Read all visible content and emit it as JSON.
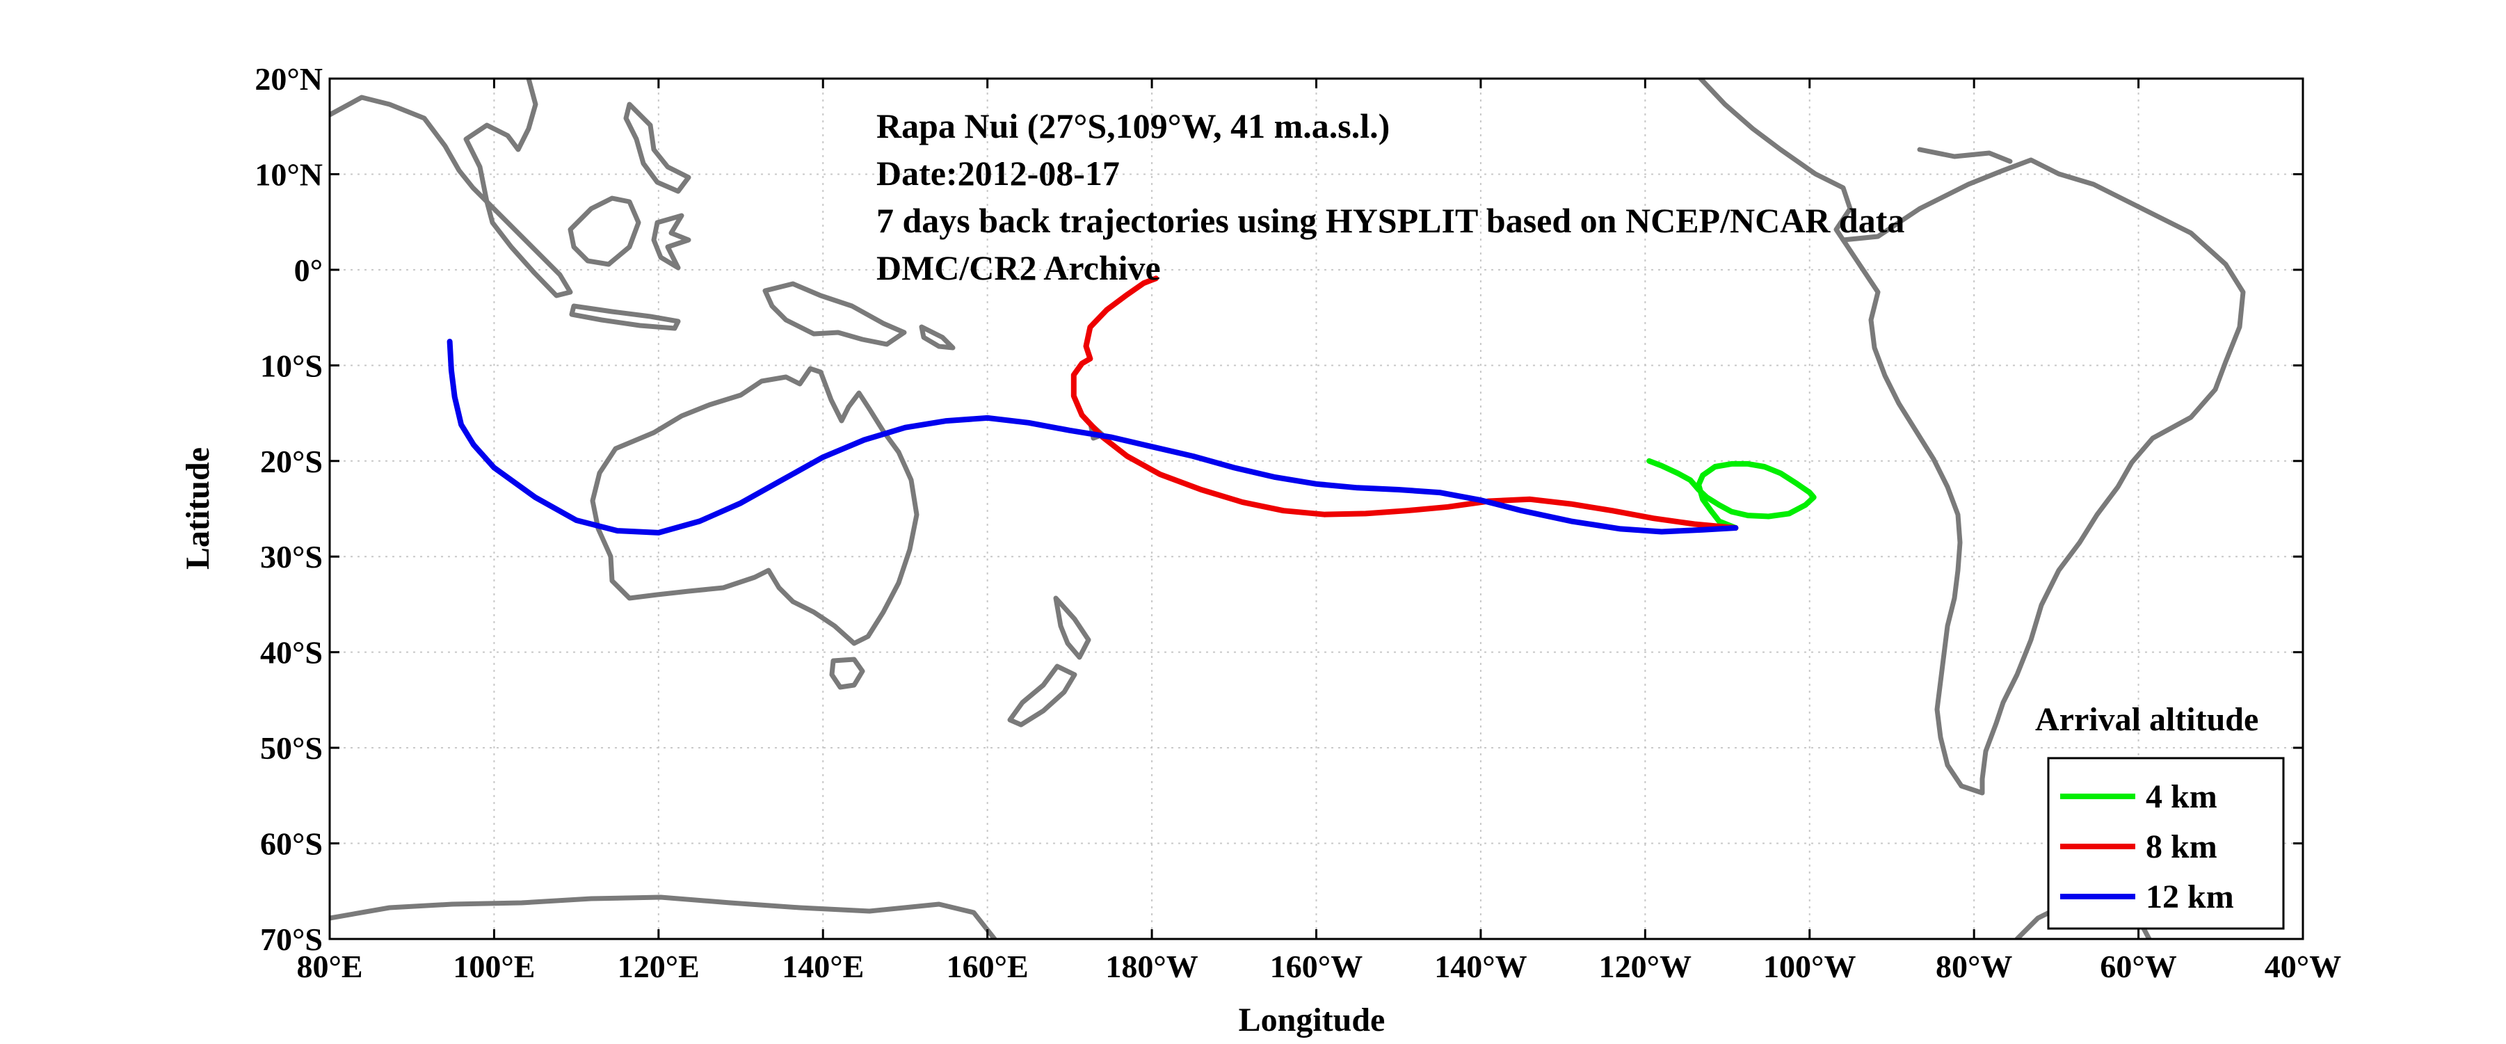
{
  "chart_data": {
    "type": "map",
    "xlabel": "Longitude",
    "ylabel": "Latitude",
    "xlim": [
      80,
      320
    ],
    "ylim": [
      -70,
      20
    ],
    "x_ticks": [
      {
        "value": 80,
        "label": "80°E"
      },
      {
        "value": 100,
        "label": "100°E"
      },
      {
        "value": 120,
        "label": "120°E"
      },
      {
        "value": 140,
        "label": "140°E"
      },
      {
        "value": 160,
        "label": "160°E"
      },
      {
        "value": 180,
        "label": "180°W"
      },
      {
        "value": 200,
        "label": "160°W"
      },
      {
        "value": 220,
        "label": "140°W"
      },
      {
        "value": 240,
        "label": "120°W"
      },
      {
        "value": 260,
        "label": "100°W"
      },
      {
        "value": 280,
        "label": "80°W"
      },
      {
        "value": 300,
        "label": "60°W"
      },
      {
        "value": 320,
        "label": "40°W"
      }
    ],
    "y_ticks": [
      {
        "value": 20,
        "label": "20°N"
      },
      {
        "value": 10,
        "label": "10°N"
      },
      {
        "value": 0,
        "label": "0°"
      },
      {
        "value": -10,
        "label": "10°S"
      },
      {
        "value": -20,
        "label": "20°S"
      },
      {
        "value": -30,
        "label": "30°S"
      },
      {
        "value": -40,
        "label": "40°S"
      },
      {
        "value": -50,
        "label": "50°S"
      },
      {
        "value": -60,
        "label": "60°S"
      },
      {
        "value": -70,
        "label": "70°S"
      }
    ],
    "grid": true,
    "annotations": [
      "Rapa Nui (27°S,109°W, 41 m.a.s.l.)",
      "Date:2012-08-17",
      "7 days back trajectories using HYSPLIT based on NCEP/NCAR data",
      "DMC/CR2 Archive"
    ],
    "legend_title": "Arrival altitude",
    "legend_position": "bottom-right",
    "coastline_color": "#7a7a7a",
    "series": [
      {
        "name": "4 km",
        "color": "#00ee00",
        "lon": [
          251,
          249,
          248,
          247,
          246.5,
          247,
          248.5,
          250.5,
          252.5,
          254.5,
          256.5,
          258.5,
          260,
          260.5,
          259.5,
          257.5,
          255,
          252.5,
          250.5,
          249,
          247.5,
          246.5,
          245.5,
          244,
          242,
          240.5
        ],
        "lat": [
          -27,
          -26.3,
          -25.2,
          -24,
          -22.5,
          -21.5,
          -20.6,
          -20.3,
          -20.3,
          -20.6,
          -21.3,
          -22.4,
          -23.3,
          -23.8,
          -24.6,
          -25.5,
          -25.8,
          -25.7,
          -25.3,
          -24.6,
          -23.8,
          -23,
          -22,
          -21.3,
          -20.5,
          -20
        ]
      },
      {
        "name": "8 km",
        "color": "#ee0000",
        "lon": [
          251,
          246,
          241,
          236,
          231,
          226,
          221,
          216,
          211,
          206,
          201,
          196,
          191,
          186,
          181,
          177,
          174,
          171.5,
          170.5,
          170.5,
          171.5,
          172.5,
          172,
          172.5,
          174.5,
          177,
          179,
          180.5
        ],
        "lat": [
          -27,
          -26.6,
          -26,
          -25.2,
          -24.5,
          -24,
          -24.2,
          -24.8,
          -25.2,
          -25.5,
          -25.6,
          -25.2,
          -24.3,
          -23,
          -21.4,
          -19.5,
          -17.5,
          -15.2,
          -13.2,
          -11,
          -9.8,
          -9.3,
          -8,
          -6,
          -4.2,
          -2.6,
          -1.4,
          -0.9
        ]
      },
      {
        "name": "12 km",
        "color": "#0000ee",
        "lon": [
          251,
          247,
          242,
          237,
          231,
          225,
          220,
          215,
          210,
          205,
          200,
          195,
          190,
          185,
          180,
          175,
          170,
          165,
          160,
          155,
          150,
          145,
          140,
          135,
          130,
          125,
          120,
          115,
          110,
          105,
          100,
          97.5,
          96,
          95.2,
          94.8,
          94.6
        ],
        "lat": [
          -27,
          -27.2,
          -27.4,
          -27.1,
          -26.3,
          -25.2,
          -24.1,
          -23.3,
          -23,
          -22.8,
          -22.4,
          -21.7,
          -20.7,
          -19.5,
          -18.5,
          -17.5,
          -16.8,
          -16,
          -15.5,
          -15.8,
          -16.5,
          -17.8,
          -19.6,
          -22,
          -24.4,
          -26.3,
          -27.5,
          -27.3,
          -26.2,
          -23.8,
          -20.7,
          -18.3,
          -16.2,
          -13.3,
          -10.5,
          -7.5
        ]
      }
    ]
  }
}
